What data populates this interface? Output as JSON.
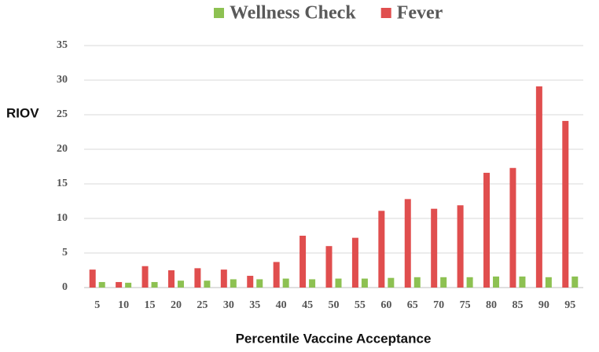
{
  "chart_data": {
    "type": "bar",
    "x_label": "Percentile Vaccine Acceptance",
    "y_label": "RIOV",
    "categories": [
      "5",
      "10",
      "15",
      "20",
      "25",
      "30",
      "35",
      "40",
      "45",
      "50",
      "55",
      "60",
      "65",
      "70",
      "75",
      "80",
      "85",
      "90",
      "95"
    ],
    "series": [
      {
        "name": "Wellness Check",
        "color": "#8dc152",
        "values": [
          0.8,
          0.7,
          0.8,
          1.0,
          1.0,
          1.2,
          1.2,
          1.3,
          1.2,
          1.3,
          1.3,
          1.4,
          1.5,
          1.5,
          1.5,
          1.6,
          1.6,
          1.5,
          1.6
        ]
      },
      {
        "name": "Fever",
        "color": "#e04e4e",
        "values": [
          2.6,
          0.8,
          3.1,
          2.5,
          2.8,
          2.6,
          1.7,
          3.7,
          7.5,
          6.0,
          7.2,
          11.1,
          12.8,
          11.4,
          11.9,
          16.6,
          17.3,
          29.1,
          24.1
        ]
      }
    ],
    "ylim": [
      0,
      35
    ],
    "yticks": [
      0,
      5,
      10,
      15,
      20,
      25,
      30,
      35
    ],
    "grid": true
  }
}
